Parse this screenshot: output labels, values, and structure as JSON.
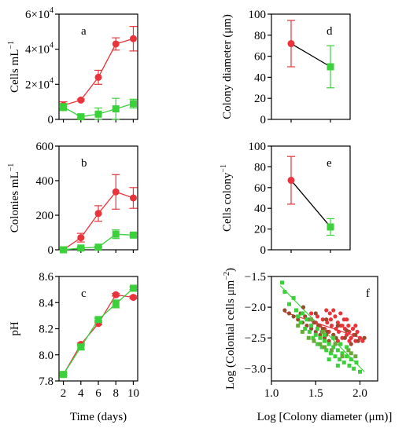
{
  "colors": {
    "red": "#e8343a",
    "green": "#3ad13a",
    "brown": "#9a4a2c",
    "olive": "#6aa83a",
    "black": "#000000"
  },
  "chart_data": [
    {
      "id": "a",
      "panel_label": "a",
      "type": "line",
      "xlabel": "",
      "ylabel": "Cells mL",
      "xlim": [
        1.5,
        10.5
      ],
      "ylim": [
        0,
        60000
      ],
      "yticks": [
        {
          "v": 0,
          "m": "0",
          "e": ""
        },
        {
          "v": 20000,
          "m": "2×10",
          "e": "4"
        },
        {
          "v": 40000,
          "m": "4×10",
          "e": "4"
        },
        {
          "v": 60000,
          "m": "6×10",
          "e": "4"
        }
      ],
      "xticks": [],
      "series": [
        {
          "color": "red",
          "marker": "circle",
          "x": [
            2,
            4,
            6,
            8,
            10
          ],
          "y": [
            8000,
            11000,
            24000,
            43000,
            46000
          ],
          "err": [
            2000,
            600,
            4000,
            3500,
            7000
          ]
        },
        {
          "color": "green",
          "marker": "square",
          "x": [
            2,
            4,
            6,
            8,
            10
          ],
          "y": [
            7000,
            1500,
            3000,
            6000,
            9000
          ],
          "err": [
            2000,
            600,
            3500,
            6000,
            2500
          ]
        }
      ]
    },
    {
      "id": "b",
      "panel_label": "b",
      "type": "line",
      "xlabel": "",
      "ylabel": "Colonies mL",
      "xlim": [
        1.5,
        10.5
      ],
      "ylim": [
        0,
        600
      ],
      "yticks": [
        {
          "v": 0,
          "m": "0",
          "e": ""
        },
        {
          "v": 200,
          "m": "200",
          "e": ""
        },
        {
          "v": 400,
          "m": "400",
          "e": ""
        },
        {
          "v": 600,
          "m": "600",
          "e": ""
        }
      ],
      "xticks": [],
      "series": [
        {
          "color": "red",
          "marker": "circle",
          "x": [
            2,
            4,
            6,
            8,
            10
          ],
          "y": [
            0,
            70,
            210,
            335,
            300
          ],
          "err": [
            5,
            25,
            45,
            100,
            60
          ]
        },
        {
          "color": "green",
          "marker": "square",
          "x": [
            2,
            4,
            6,
            8,
            10
          ],
          "y": [
            0,
            10,
            15,
            90,
            85
          ],
          "err": [
            3,
            5,
            5,
            25,
            10
          ]
        }
      ]
    },
    {
      "id": "c",
      "panel_label": "c",
      "type": "line",
      "xlabel": "Time (days)",
      "ylabel": "pH",
      "xlim": [
        1.5,
        10.5
      ],
      "ylim": [
        7.8,
        8.6
      ],
      "yticks": [
        {
          "v": 7.8,
          "m": "7.8",
          "e": ""
        },
        {
          "v": 8.0,
          "m": "8.0",
          "e": ""
        },
        {
          "v": 8.2,
          "m": "8.2",
          "e": ""
        },
        {
          "v": 8.4,
          "m": "8.4",
          "e": ""
        },
        {
          "v": 8.6,
          "m": "8.6",
          "e": ""
        }
      ],
      "xticks": [
        "2",
        "4",
        "6",
        "8",
        "10"
      ],
      "series": [
        {
          "color": "red",
          "marker": "circle",
          "x": [
            2,
            4,
            6,
            8,
            10
          ],
          "y": [
            7.85,
            8.08,
            8.24,
            8.46,
            8.44
          ],
          "err": [
            0.01,
            0.01,
            0.01,
            0.01,
            0.01
          ]
        },
        {
          "color": "green",
          "marker": "square",
          "x": [
            2,
            4,
            6,
            8,
            10
          ],
          "y": [
            7.85,
            8.06,
            8.27,
            8.39,
            8.51
          ],
          "err": [
            0.01,
            0.02,
            0.01,
            0.03,
            0.01
          ]
        }
      ]
    },
    {
      "id": "d",
      "panel_label": "d",
      "type": "line",
      "xlabel": "",
      "ylabel": "Colony diameter (μm)",
      "xlim": [
        0.5,
        2.5
      ],
      "ylim": [
        0,
        100
      ],
      "yticks": [
        {
          "v": 0,
          "m": "0",
          "e": ""
        },
        {
          "v": 20,
          "m": "20",
          "e": ""
        },
        {
          "v": 40,
          "m": "40",
          "e": ""
        },
        {
          "v": 60,
          "m": "60",
          "e": ""
        },
        {
          "v": 80,
          "m": "80",
          "e": ""
        },
        {
          "v": 100,
          "m": "100",
          "e": ""
        }
      ],
      "xticks": [],
      "series": [
        {
          "color": "black",
          "marker": "none",
          "x": [
            1,
            2
          ],
          "y": [
            72,
            50
          ],
          "err": [
            0,
            0
          ]
        },
        {
          "color": "red",
          "marker": "circle",
          "x": [
            1
          ],
          "y": [
            72
          ],
          "err": [
            22
          ]
        },
        {
          "color": "green",
          "marker": "square",
          "x": [
            2
          ],
          "y": [
            50
          ],
          "err": [
            20
          ]
        }
      ]
    },
    {
      "id": "e",
      "panel_label": "e",
      "type": "line",
      "xlabel": "",
      "ylabel": "Cells colony",
      "xlim": [
        0.5,
        2.5
      ],
      "ylim": [
        0,
        100
      ],
      "yticks": [
        {
          "v": 0,
          "m": "0",
          "e": ""
        },
        {
          "v": 20,
          "m": "20",
          "e": ""
        },
        {
          "v": 40,
          "m": "40",
          "e": ""
        },
        {
          "v": 60,
          "m": "60",
          "e": ""
        },
        {
          "v": 80,
          "m": "80",
          "e": ""
        },
        {
          "v": 100,
          "m": "100",
          "e": ""
        }
      ],
      "xticks": [],
      "series": [
        {
          "color": "black",
          "marker": "none",
          "x": [
            1,
            2
          ],
          "y": [
            67,
            22
          ],
          "err": [
            0,
            0
          ]
        },
        {
          "color": "red",
          "marker": "circle",
          "x": [
            1
          ],
          "y": [
            67
          ],
          "err": [
            23
          ]
        },
        {
          "color": "green",
          "marker": "square",
          "x": [
            2
          ],
          "y": [
            22
          ],
          "err": [
            8
          ]
        }
      ]
    },
    {
      "id": "f",
      "panel_label": "f",
      "type": "scatter",
      "xlabel": "Log [Colony diameter (μm)]",
      "ylabel": "Log (Colonial cells μm",
      "xlim": [
        1.0,
        2.2
      ],
      "ylim": [
        -3.2,
        -1.5
      ],
      "yticks": [
        {
          "v": -3.0,
          "m": "−3.0",
          "e": ""
        },
        {
          "v": -2.5,
          "m": "−2.5",
          "e": ""
        },
        {
          "v": -2.0,
          "m": "−2.0",
          "e": ""
        },
        {
          "v": -1.5,
          "m": "−1.5",
          "e": ""
        }
      ],
      "xticks": [
        "1.0",
        "1.5",
        "2.0"
      ],
      "xtick_values": [
        1.0,
        1.5,
        2.0
      ],
      "fit_lines": [
        {
          "color": "red",
          "x": [
            1.15,
            2.05
          ],
          "y": [
            -2.08,
            -2.52
          ]
        },
        {
          "color": "green",
          "x": [
            1.1,
            2.05
          ],
          "y": [
            -1.65,
            -3.05
          ]
        }
      ],
      "series": [
        {
          "color": "red",
          "marker": "dot",
          "points": [
            [
              1.45,
              -2.1
            ],
            [
              1.5,
              -2.25
            ],
            [
              1.52,
              -2.15
            ],
            [
              1.55,
              -2.3
            ],
            [
              1.58,
              -2.2
            ],
            [
              1.6,
              -2.35
            ],
            [
              1.62,
              -2.05
            ],
            [
              1.63,
              -2.25
            ],
            [
              1.65,
              -2.4
            ],
            [
              1.67,
              -2.2
            ],
            [
              1.68,
              -2.3
            ],
            [
              1.7,
              -2.45
            ],
            [
              1.72,
              -2.15
            ],
            [
              1.73,
              -2.35
            ],
            [
              1.75,
              -2.25
            ],
            [
              1.76,
              -2.4
            ],
            [
              1.78,
              -2.3
            ],
            [
              1.8,
              -2.5
            ],
            [
              1.82,
              -2.2
            ],
            [
              1.83,
              -2.35
            ],
            [
              1.85,
              -2.45
            ],
            [
              1.87,
              -2.3
            ],
            [
              1.88,
              -2.4
            ],
            [
              1.9,
              -2.5
            ],
            [
              1.92,
              -2.35
            ],
            [
              1.93,
              -2.45
            ],
            [
              1.95,
              -2.55
            ],
            [
              1.97,
              -2.4
            ],
            [
              2.0,
              -2.5
            ],
            [
              2.03,
              -2.55
            ],
            [
              1.7,
              -2.05
            ],
            [
              1.78,
              -2.1
            ],
            [
              1.85,
              -2.2
            ],
            [
              1.62,
              -2.45
            ],
            [
              1.57,
              -2.4
            ],
            [
              1.88,
              -2.55
            ],
            [
              1.95,
              -2.3
            ],
            [
              1.75,
              -2.55
            ],
            [
              1.66,
              -2.1
            ],
            [
              1.8,
              -2.3
            ]
          ]
        },
        {
          "color": "brown",
          "marker": "dot",
          "points": [
            [
              1.15,
              -2.05
            ],
            [
              1.2,
              -2.1
            ],
            [
              1.25,
              -2.15
            ],
            [
              1.28,
              -2.05
            ],
            [
              1.3,
              -2.2
            ],
            [
              1.33,
              -2.1
            ],
            [
              1.35,
              -2.25
            ],
            [
              1.38,
              -2.15
            ],
            [
              1.4,
              -2.3
            ],
            [
              1.42,
              -2.2
            ],
            [
              1.45,
              -2.35
            ],
            [
              1.48,
              -2.25
            ],
            [
              1.5,
              -2.4
            ],
            [
              1.53,
              -2.3
            ],
            [
              1.55,
              -2.45
            ],
            [
              1.58,
              -2.35
            ],
            [
              1.6,
              -2.5
            ],
            [
              1.63,
              -2.4
            ],
            [
              1.65,
              -2.55
            ],
            [
              1.7,
              -2.45
            ],
            [
              1.73,
              -2.5
            ],
            [
              1.78,
              -2.6
            ],
            [
              1.83,
              -2.5
            ],
            [
              1.9,
              -2.6
            ],
            [
              1.98,
              -2.55
            ],
            [
              2.05,
              -2.5
            ],
            [
              1.36,
              -2.0
            ],
            [
              1.5,
              -2.1
            ],
            [
              1.62,
              -2.2
            ],
            [
              1.75,
              -2.3
            ],
            [
              1.85,
              -2.38
            ],
            [
              1.95,
              -2.45
            ]
          ]
        },
        {
          "color": "green",
          "marker": "square",
          "points": [
            [
              1.12,
              -1.6
            ],
            [
              1.15,
              -1.75
            ],
            [
              1.2,
              -1.95
            ],
            [
              1.25,
              -1.85
            ],
            [
              1.28,
              -2.05
            ],
            [
              1.3,
              -2.15
            ],
            [
              1.33,
              -2.25
            ],
            [
              1.35,
              -2.1
            ],
            [
              1.38,
              -2.35
            ],
            [
              1.4,
              -2.2
            ],
            [
              1.43,
              -2.4
            ],
            [
              1.45,
              -2.3
            ],
            [
              1.47,
              -2.5
            ],
            [
              1.5,
              -2.45
            ],
            [
              1.52,
              -2.6
            ],
            [
              1.55,
              -2.5
            ],
            [
              1.57,
              -2.65
            ],
            [
              1.6,
              -2.55
            ],
            [
              1.62,
              -2.7
            ],
            [
              1.65,
              -2.6
            ],
            [
              1.67,
              -2.75
            ],
            [
              1.7,
              -2.65
            ],
            [
              1.72,
              -2.8
            ],
            [
              1.75,
              -2.7
            ],
            [
              1.77,
              -2.85
            ],
            [
              1.8,
              -2.75
            ],
            [
              1.82,
              -2.9
            ],
            [
              1.85,
              -2.8
            ],
            [
              1.88,
              -2.95
            ],
            [
              1.9,
              -2.85
            ],
            [
              1.93,
              -3.0
            ],
            [
              1.96,
              -2.9
            ],
            [
              2.0,
              -3.05
            ],
            [
              1.6,
              -2.45
            ],
            [
              1.7,
              -2.5
            ],
            [
              1.78,
              -2.6
            ],
            [
              1.85,
              -2.65
            ],
            [
              1.52,
              -2.35
            ],
            [
              1.65,
              -2.85
            ],
            [
              1.75,
              -2.95
            ]
          ]
        },
        {
          "color": "olive",
          "marker": "square",
          "points": [
            [
              1.3,
              -2.3
            ],
            [
              1.35,
              -2.4
            ],
            [
              1.42,
              -2.5
            ],
            [
              1.48,
              -2.55
            ],
            [
              1.55,
              -2.6
            ],
            [
              1.6,
              -2.65
            ],
            [
              1.68,
              -2.7
            ],
            [
              1.72,
              -2.6
            ],
            [
              1.8,
              -2.8
            ],
            [
              1.87,
              -2.7
            ],
            [
              1.45,
              -2.2
            ],
            [
              1.58,
              -2.4
            ],
            [
              1.9,
              -2.75
            ],
            [
              1.95,
              -2.8
            ]
          ]
        }
      ]
    }
  ]
}
